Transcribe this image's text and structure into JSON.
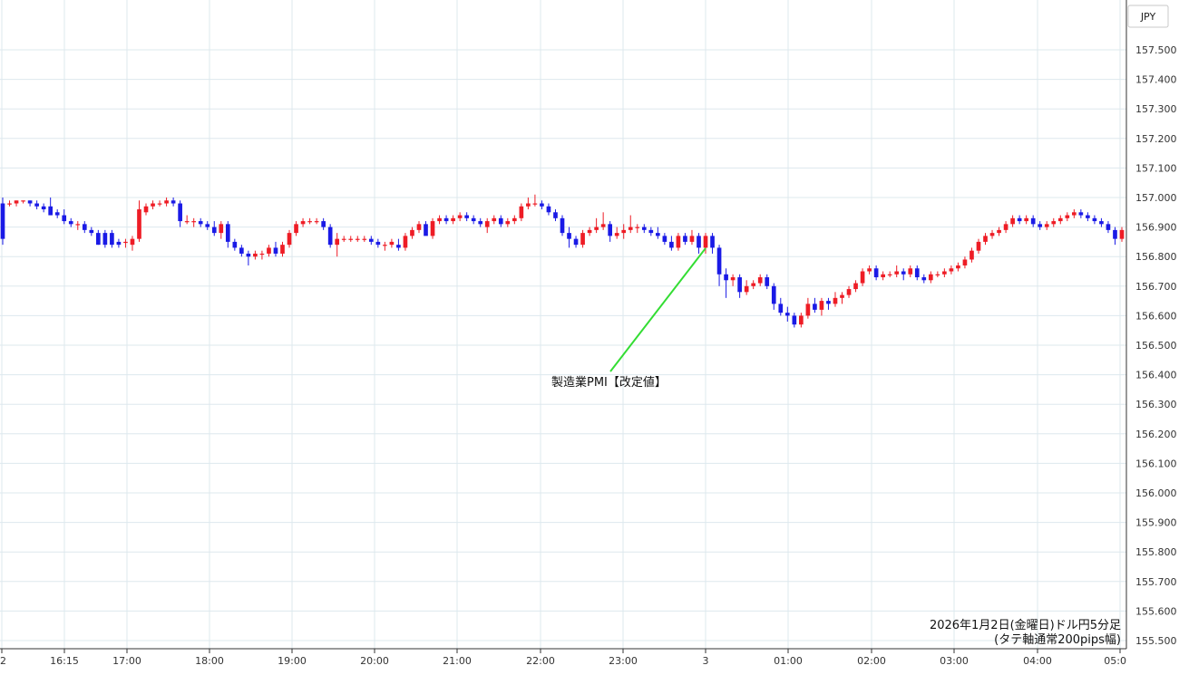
{
  "chart_data": {
    "type": "candlestick",
    "currency": "JPY",
    "title": "2026年1月2日(金曜日)ドル円5分足",
    "subtitle": "(タテ軸通常200pips幅)",
    "ylim": [
      155.5,
      157.5
    ],
    "y_ticks": [
      "157.500",
      "157.400",
      "157.300",
      "157.200",
      "157.100",
      "157.000",
      "156.900",
      "156.800",
      "156.700",
      "156.600",
      "156.500",
      "156.400",
      "156.300",
      "156.200",
      "156.100",
      "156.000",
      "155.900",
      "155.800",
      "155.700",
      "155.600",
      "155.500"
    ],
    "x_ticks": [
      "2",
      "16:15",
      "17:00",
      "18:00",
      "19:00",
      "20:00",
      "21:00",
      "22:00",
      "23:00",
      "3",
      "01:00",
      "02:00",
      "03:00",
      "04:00",
      "05:0"
    ],
    "up_color": "#ee1c25",
    "down_color": "#1a1ae6",
    "annotation": {
      "text": "製造業PMI【改定値】",
      "color": "#33dd33"
    },
    "grid": true,
    "candles": [
      [
        156.98,
        157.0,
        156.84,
        156.86
      ],
      [
        156.98,
        156.99,
        156.97,
        156.98
      ],
      [
        156.98,
        156.99,
        156.97,
        156.99
      ],
      [
        156.99,
        156.99,
        156.98,
        156.99
      ],
      [
        156.99,
        156.99,
        156.97,
        156.98
      ],
      [
        156.98,
        156.99,
        156.96,
        156.97
      ],
      [
        156.97,
        156.98,
        156.95,
        156.96
      ],
      [
        156.97,
        157.0,
        156.94,
        156.94
      ],
      [
        156.95,
        156.96,
        156.93,
        156.94
      ],
      [
        156.94,
        156.96,
        156.91,
        156.92
      ],
      [
        156.92,
        156.93,
        156.9,
        156.91
      ],
      [
        156.91,
        156.92,
        156.89,
        156.91
      ],
      [
        156.91,
        156.92,
        156.88,
        156.89
      ],
      [
        156.89,
        156.9,
        156.87,
        156.88
      ],
      [
        156.88,
        156.89,
        156.84,
        156.84
      ],
      [
        156.88,
        156.89,
        156.83,
        156.84
      ],
      [
        156.88,
        156.89,
        156.83,
        156.84
      ],
      [
        156.85,
        156.86,
        156.83,
        156.84
      ],
      [
        156.85,
        156.86,
        156.83,
        156.85
      ],
      [
        156.84,
        156.87,
        156.82,
        156.86
      ],
      [
        156.86,
        156.99,
        156.85,
        156.96
      ],
      [
        156.95,
        156.98,
        156.94,
        156.97
      ],
      [
        156.97,
        156.99,
        156.96,
        156.98
      ],
      [
        156.98,
        156.99,
        156.97,
        156.98
      ],
      [
        156.98,
        157.0,
        156.97,
        156.99
      ],
      [
        156.99,
        157.0,
        156.97,
        156.98
      ],
      [
        156.98,
        156.99,
        156.9,
        156.92
      ],
      [
        156.92,
        156.94,
        156.91,
        156.92
      ],
      [
        156.92,
        156.93,
        156.9,
        156.92
      ],
      [
        156.92,
        156.93,
        156.9,
        156.91
      ],
      [
        156.91,
        156.92,
        156.89,
        156.9
      ],
      [
        156.9,
        156.92,
        156.87,
        156.88
      ],
      [
        156.88,
        156.92,
        156.86,
        156.91
      ],
      [
        156.91,
        156.92,
        156.83,
        156.85
      ],
      [
        156.85,
        156.86,
        156.82,
        156.83
      ],
      [
        156.83,
        156.84,
        156.8,
        156.81
      ],
      [
        156.81,
        156.82,
        156.77,
        156.8
      ],
      [
        156.8,
        156.82,
        156.79,
        156.81
      ],
      [
        156.81,
        156.82,
        156.79,
        156.81
      ],
      [
        156.81,
        156.84,
        156.8,
        156.83
      ],
      [
        156.83,
        156.85,
        156.8,
        156.81
      ],
      [
        156.81,
        156.85,
        156.8,
        156.84
      ],
      [
        156.84,
        156.89,
        156.83,
        156.88
      ],
      [
        156.88,
        156.92,
        156.87,
        156.91
      ],
      [
        156.91,
        156.93,
        156.9,
        156.92
      ],
      [
        156.92,
        156.93,
        156.91,
        156.92
      ],
      [
        156.92,
        156.93,
        156.91,
        156.92
      ],
      [
        156.92,
        156.93,
        156.89,
        156.9
      ],
      [
        156.9,
        156.91,
        156.83,
        156.84
      ],
      [
        156.84,
        156.88,
        156.8,
        156.86
      ],
      [
        156.86,
        156.87,
        156.85,
        156.86
      ],
      [
        156.86,
        156.87,
        156.85,
        156.86
      ],
      [
        156.86,
        156.87,
        156.85,
        156.86
      ],
      [
        156.86,
        156.87,
        156.85,
        156.86
      ],
      [
        156.86,
        156.87,
        156.84,
        156.85
      ],
      [
        156.85,
        156.86,
        156.83,
        156.84
      ],
      [
        156.84,
        156.85,
        156.82,
        156.84
      ],
      [
        156.84,
        156.86,
        156.83,
        156.85
      ],
      [
        156.84,
        156.86,
        156.82,
        156.83
      ],
      [
        156.83,
        156.88,
        156.82,
        156.87
      ],
      [
        156.87,
        156.9,
        156.86,
        156.89
      ],
      [
        156.89,
        156.92,
        156.88,
        156.91
      ],
      [
        156.91,
        156.92,
        156.88,
        156.87
      ],
      [
        156.87,
        156.93,
        156.86,
        156.92
      ],
      [
        156.92,
        156.94,
        156.91,
        156.93
      ],
      [
        156.93,
        156.94,
        156.91,
        156.92
      ],
      [
        156.92,
        156.94,
        156.91,
        156.93
      ],
      [
        156.93,
        156.95,
        156.92,
        156.94
      ],
      [
        156.94,
        156.95,
        156.92,
        156.93
      ],
      [
        156.93,
        156.94,
        156.91,
        156.92
      ],
      [
        156.92,
        156.93,
        156.9,
        156.91
      ],
      [
        156.9,
        156.93,
        156.88,
        156.92
      ],
      [
        156.92,
        156.94,
        156.91,
        156.93
      ],
      [
        156.93,
        156.94,
        156.9,
        156.91
      ],
      [
        156.91,
        156.93,
        156.9,
        156.92
      ],
      [
        156.92,
        156.94,
        156.91,
        156.93
      ],
      [
        156.93,
        156.98,
        156.92,
        156.97
      ],
      [
        156.97,
        157.0,
        156.96,
        156.98
      ],
      [
        156.98,
        157.01,
        156.97,
        156.98
      ],
      [
        156.98,
        156.99,
        156.96,
        156.97
      ],
      [
        156.97,
        156.98,
        156.94,
        156.95
      ],
      [
        156.95,
        156.96,
        156.92,
        156.93
      ],
      [
        156.93,
        156.94,
        156.87,
        156.88
      ],
      [
        156.88,
        156.9,
        156.83,
        156.86
      ],
      [
        156.86,
        156.87,
        156.83,
        156.84
      ],
      [
        156.84,
        156.89,
        156.83,
        156.88
      ],
      [
        156.88,
        156.9,
        156.87,
        156.89
      ],
      [
        156.89,
        156.93,
        156.88,
        156.9
      ],
      [
        156.9,
        156.95,
        156.89,
        156.91
      ],
      [
        156.91,
        156.92,
        156.85,
        156.87
      ],
      [
        156.87,
        156.9,
        156.86,
        156.88
      ],
      [
        156.88,
        156.91,
        156.86,
        156.89
      ],
      [
        156.89,
        156.94,
        156.88,
        156.9
      ],
      [
        156.9,
        156.91,
        156.88,
        156.9
      ],
      [
        156.9,
        156.91,
        156.88,
        156.89
      ],
      [
        156.89,
        156.9,
        156.87,
        156.88
      ],
      [
        156.88,
        156.9,
        156.86,
        156.87
      ],
      [
        156.87,
        156.88,
        156.84,
        156.85
      ],
      [
        156.85,
        156.87,
        156.82,
        156.83
      ],
      [
        156.83,
        156.88,
        156.82,
        156.87
      ],
      [
        156.87,
        156.88,
        156.84,
        156.85
      ],
      [
        156.85,
        156.89,
        156.84,
        156.87
      ],
      [
        156.87,
        156.88,
        156.81,
        156.83
      ],
      [
        156.83,
        156.88,
        156.81,
        156.87
      ],
      [
        156.87,
        156.88,
        156.81,
        156.83
      ],
      [
        156.83,
        156.84,
        156.7,
        156.74
      ],
      [
        156.74,
        156.76,
        156.66,
        156.72
      ],
      [
        156.72,
        156.74,
        156.7,
        156.73
      ],
      [
        156.73,
        156.74,
        156.66,
        156.68
      ],
      [
        156.68,
        156.72,
        156.67,
        156.7
      ],
      [
        156.7,
        156.72,
        156.69,
        156.71
      ],
      [
        156.71,
        156.74,
        156.7,
        156.73
      ],
      [
        156.73,
        156.74,
        156.69,
        156.7
      ],
      [
        156.7,
        156.71,
        156.62,
        156.64
      ],
      [
        156.64,
        156.66,
        156.6,
        156.61
      ],
      [
        156.61,
        156.63,
        156.58,
        156.6
      ],
      [
        156.6,
        156.61,
        156.56,
        156.57
      ],
      [
        156.57,
        156.61,
        156.56,
        156.6
      ],
      [
        156.6,
        156.66,
        156.59,
        156.64
      ],
      [
        156.64,
        156.66,
        156.61,
        156.62
      ],
      [
        156.62,
        156.66,
        156.6,
        156.65
      ],
      [
        156.65,
        156.66,
        156.62,
        156.64
      ],
      [
        156.64,
        156.68,
        156.63,
        156.66
      ],
      [
        156.66,
        156.68,
        156.64,
        156.67
      ],
      [
        156.67,
        156.7,
        156.66,
        156.69
      ],
      [
        156.69,
        156.72,
        156.68,
        156.71
      ],
      [
        156.71,
        156.76,
        156.7,
        156.75
      ],
      [
        156.75,
        156.77,
        156.74,
        156.76
      ],
      [
        156.76,
        156.77,
        156.72,
        156.73
      ],
      [
        156.73,
        156.75,
        156.72,
        156.74
      ],
      [
        156.74,
        156.75,
        156.73,
        156.74
      ],
      [
        156.74,
        156.77,
        156.73,
        156.75
      ],
      [
        156.75,
        156.76,
        156.72,
        156.74
      ],
      [
        156.74,
        156.77,
        156.73,
        156.76
      ],
      [
        156.76,
        156.77,
        156.72,
        156.73
      ],
      [
        156.73,
        156.74,
        156.71,
        156.72
      ],
      [
        156.72,
        156.75,
        156.71,
        156.74
      ],
      [
        156.74,
        156.75,
        156.73,
        156.74
      ],
      [
        156.74,
        156.76,
        156.73,
        156.75
      ],
      [
        156.75,
        156.77,
        156.74,
        156.76
      ],
      [
        156.76,
        156.78,
        156.75,
        156.77
      ],
      [
        156.77,
        156.8,
        156.76,
        156.79
      ],
      [
        156.79,
        156.83,
        156.78,
        156.82
      ],
      [
        156.82,
        156.86,
        156.81,
        156.85
      ],
      [
        156.85,
        156.88,
        156.84,
        156.87
      ],
      [
        156.87,
        156.89,
        156.86,
        156.88
      ],
      [
        156.88,
        156.9,
        156.87,
        156.89
      ],
      [
        156.89,
        156.92,
        156.88,
        156.91
      ],
      [
        156.91,
        156.94,
        156.9,
        156.93
      ],
      [
        156.93,
        156.94,
        156.91,
        156.92
      ],
      [
        156.92,
        156.94,
        156.91,
        156.93
      ],
      [
        156.93,
        156.94,
        156.9,
        156.91
      ],
      [
        156.91,
        156.92,
        156.89,
        156.9
      ],
      [
        156.9,
        156.92,
        156.89,
        156.91
      ],
      [
        156.91,
        156.93,
        156.9,
        156.92
      ],
      [
        156.92,
        156.94,
        156.91,
        156.93
      ],
      [
        156.93,
        156.95,
        156.92,
        156.94
      ],
      [
        156.94,
        156.96,
        156.93,
        156.95
      ],
      [
        156.95,
        156.96,
        156.93,
        156.94
      ],
      [
        156.94,
        156.95,
        156.92,
        156.93
      ],
      [
        156.93,
        156.94,
        156.91,
        156.92
      ],
      [
        156.92,
        156.93,
        156.9,
        156.91
      ],
      [
        156.91,
        156.92,
        156.88,
        156.89
      ],
      [
        156.89,
        156.9,
        156.84,
        156.86
      ],
      [
        156.86,
        156.9,
        156.85,
        156.89
      ]
    ]
  }
}
